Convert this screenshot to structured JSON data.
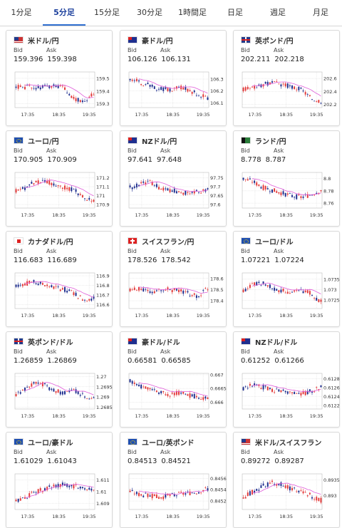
{
  "tabs": [
    {
      "label": "1分足",
      "active": false
    },
    {
      "label": "5分足",
      "active": true
    },
    {
      "label": "15分足",
      "active": false
    },
    {
      "label": "30分足",
      "active": false
    },
    {
      "label": "1時間足",
      "active": false
    },
    {
      "label": "日足",
      "active": false
    },
    {
      "label": "週足",
      "active": false
    },
    {
      "label": "月足",
      "active": false
    }
  ],
  "bid_label": "Bid",
  "ask_label": "Ask",
  "xticks": [
    "17:35",
    "18:35",
    "19:35"
  ],
  "colors": {
    "up": "#e33a3a",
    "down": "#1f2f8f",
    "ma": "#e05cd9",
    "ma2": "#2aa59a",
    "grid": "#cfcfcf"
  },
  "pairs": [
    {
      "name": "米ドル/円",
      "flag": "us-jp-flag",
      "bid": "159.396",
      "ask": "159.398",
      "yticks": [
        "159.5",
        "159.4",
        "159.3"
      ],
      "ylim": [
        159.27,
        159.55
      ],
      "seed": 1,
      "trend": [
        0.6,
        0.6,
        0.58,
        0.62,
        0.6,
        0.55,
        0.2,
        0.1,
        0.35
      ]
    },
    {
      "name": "豪ドル/円",
      "flag": "au-jp-flag",
      "bid": "106.126",
      "ask": "106.131",
      "yticks": [
        "106.3",
        "106.2",
        "106.1"
      ],
      "ylim": [
        106.06,
        106.36
      ],
      "seed": 2,
      "trend": [
        0.9,
        0.75,
        0.65,
        0.55,
        0.5,
        0.6,
        0.5,
        0.35,
        0.2
      ]
    },
    {
      "name": "英ポンド/円",
      "flag": "gb-jp-flag",
      "bid": "202.211",
      "ask": "202.218",
      "yticks": [
        "202.6",
        "202.4",
        "202.2"
      ],
      "ylim": [
        202.15,
        202.7
      ],
      "seed": 3,
      "trend": [
        0.5,
        0.55,
        0.7,
        0.72,
        0.7,
        0.6,
        0.5,
        0.2,
        0.1
      ]
    },
    {
      "name": "ユーロ/円",
      "flag": "eu-jp-flag",
      "bid": "170.905",
      "ask": "170.909",
      "yticks": [
        "171.2",
        "171.1",
        "171",
        "170.9"
      ],
      "ylim": [
        170.86,
        171.26
      ],
      "seed": 4,
      "trend": [
        0.5,
        0.6,
        0.8,
        0.85,
        0.7,
        0.6,
        0.5,
        0.25,
        0.1
      ]
    },
    {
      "name": "NZドル/円",
      "flag": "nz-jp-flag",
      "bid": "97.641",
      "ask": "97.648",
      "yticks": [
        "97.75",
        "97.7",
        "97.65",
        "97.6"
      ],
      "ylim": [
        97.58,
        97.78
      ],
      "seed": 5,
      "trend": [
        0.6,
        0.7,
        0.8,
        0.6,
        0.5,
        0.45,
        0.4,
        0.45,
        0.5
      ]
    },
    {
      "name": "ランド/円",
      "flag": "za-jp-flag",
      "bid": "8.778",
      "ask": "8.787",
      "yticks": [
        "8.8",
        "8.78",
        "8.76"
      ],
      "ylim": [
        8.752,
        8.81
      ],
      "seed": 6,
      "trend": [
        0.9,
        0.8,
        0.6,
        0.5,
        0.4,
        0.3,
        0.25,
        0.35,
        0.5
      ]
    },
    {
      "name": "カナダドル/円",
      "flag": "ca-jp-flag",
      "bid": "116.683",
      "ask": "116.689",
      "yticks": [
        "116.9",
        "116.8",
        "116.7",
        "116.6"
      ],
      "ylim": [
        116.56,
        116.93
      ],
      "seed": 7,
      "trend": [
        0.7,
        0.75,
        0.8,
        0.7,
        0.6,
        0.55,
        0.4,
        0.2,
        0.25
      ]
    },
    {
      "name": "スイスフラン/円",
      "flag": "ch-jp-flag",
      "bid": "178.526",
      "ask": "178.542",
      "yticks": [
        "178.6",
        "178.5",
        "178.4"
      ],
      "ylim": [
        178.33,
        178.65
      ],
      "seed": 8,
      "trend": [
        0.5,
        0.6,
        0.45,
        0.5,
        0.55,
        0.5,
        0.4,
        0.3,
        0.6
      ]
    },
    {
      "name": "ユーロ/ドル",
      "flag": "eu-us-flag",
      "bid": "1.07221",
      "ask": "1.07224",
      "yticks": [
        "1.0735",
        "1.073",
        "1.0725"
      ],
      "ylim": [
        1.0721,
        1.0738
      ],
      "seed": 9,
      "trend": [
        0.5,
        0.7,
        0.75,
        0.6,
        0.5,
        0.45,
        0.5,
        0.4,
        0.1
      ]
    },
    {
      "name": "英ポンド/ドル",
      "flag": "gb-us-flag",
      "bid": "1.26859",
      "ask": "1.26869",
      "yticks": [
        "1.27",
        "1.2695",
        "1.269",
        "1.2685"
      ],
      "ylim": [
        1.26842,
        1.27015
      ],
      "seed": 10,
      "trend": [
        0.4,
        0.6,
        0.8,
        0.7,
        0.5,
        0.45,
        0.55,
        0.35,
        0.2
      ]
    },
    {
      "name": "豪ドル/ドル",
      "flag": "au-us-flag",
      "bid": "0.66581",
      "ask": "0.66585",
      "yticks": [
        "0.667",
        "0.6665",
        "0.666"
      ],
      "ylim": [
        0.66575,
        0.66705
      ],
      "seed": 11,
      "trend": [
        0.85,
        0.7,
        0.55,
        0.45,
        0.4,
        0.45,
        0.35,
        0.3,
        0.25
      ]
    },
    {
      "name": "NZドル/ドル",
      "flag": "nz-us-flag",
      "bid": "0.61252",
      "ask": "0.61266",
      "yticks": [
        "0.6128",
        "0.6126",
        "0.6124",
        "0.6122"
      ],
      "ylim": [
        0.61212,
        0.61292
      ],
      "seed": 12,
      "trend": [
        0.6,
        0.7,
        0.65,
        0.55,
        0.5,
        0.45,
        0.4,
        0.5,
        0.65
      ]
    },
    {
      "name": "ユーロ/豪ドル",
      "flag": "eu-au-flag",
      "bid": "1.61029",
      "ask": "1.61043",
      "yticks": [
        "1.611",
        "1.61",
        "1.609"
      ],
      "ylim": [
        1.6085,
        1.6115
      ],
      "seed": 13,
      "trend": [
        0.15,
        0.3,
        0.5,
        0.6,
        0.7,
        0.75,
        0.7,
        0.65,
        0.6
      ]
    },
    {
      "name": "ユーロ/英ポンド",
      "flag": "eu-gb-flag",
      "bid": "0.84513",
      "ask": "0.84521",
      "yticks": [
        "0.8456",
        "0.8454",
        "0.8452"
      ],
      "ylim": [
        0.84505,
        0.84568
      ],
      "seed": 14,
      "trend": [
        0.5,
        0.4,
        0.35,
        0.3,
        0.35,
        0.4,
        0.45,
        0.5,
        0.6
      ]
    },
    {
      "name": "米ドル/スイスフラン",
      "flag": "us-ch-flag",
      "bid": "0.89272",
      "ask": "0.89287",
      "yticks": [
        "0.8935",
        "0.893"
      ],
      "ylim": [
        0.89255,
        0.8937
      ],
      "seed": 15,
      "trend": [
        0.3,
        0.5,
        0.7,
        0.8,
        0.75,
        0.6,
        0.5,
        0.35,
        0.2
      ]
    }
  ]
}
